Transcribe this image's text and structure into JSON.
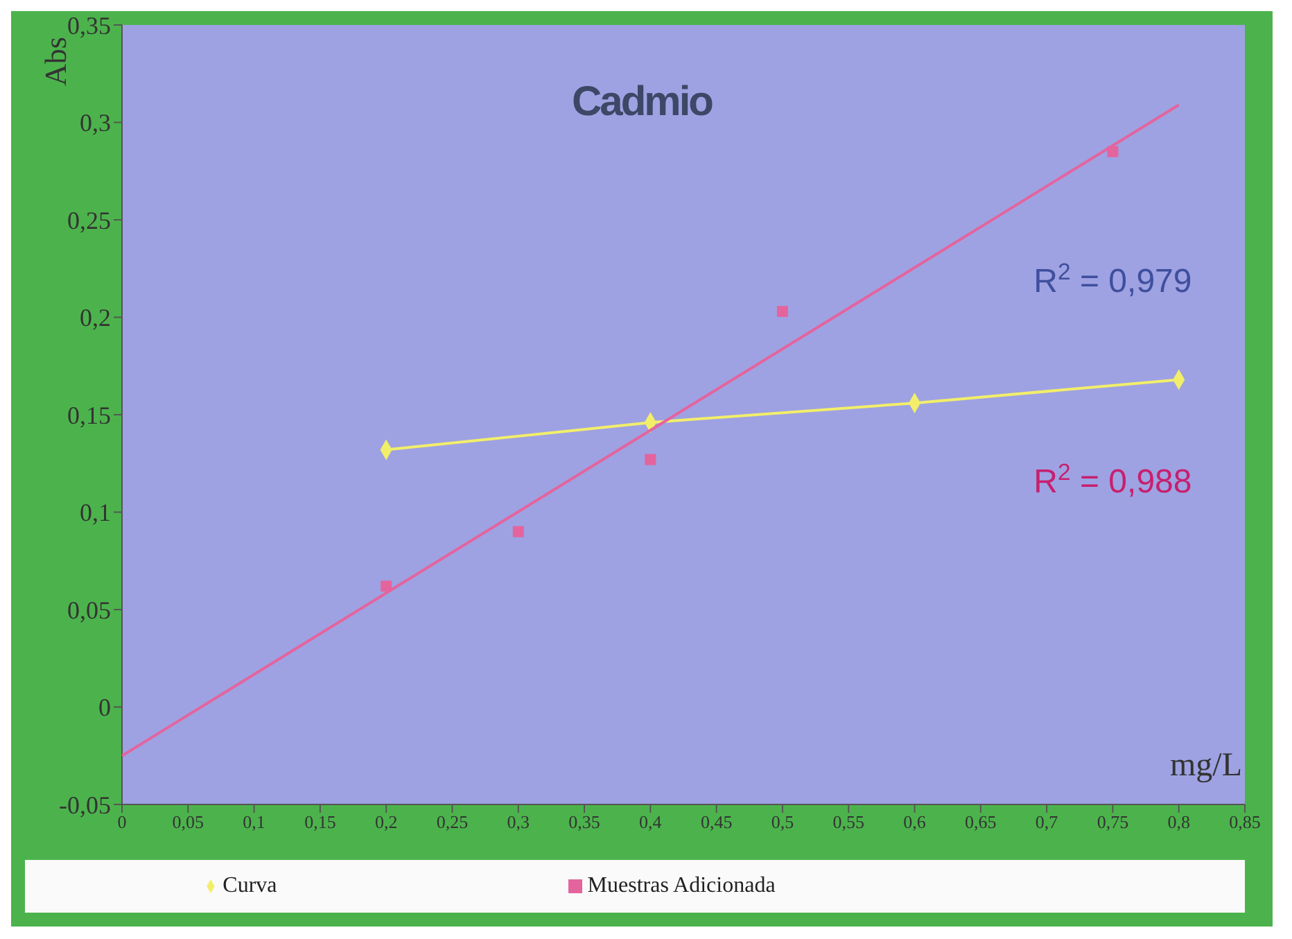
{
  "chart_data": {
    "type": "scatter",
    "title": "Cadmio",
    "xlabel": "mg/L",
    "ylabel": "Abs",
    "xlim": [
      0,
      0.85
    ],
    "xticks": [
      {
        "value": 0,
        "label": "0"
      },
      {
        "value": 0.05,
        "label": "0,05"
      },
      {
        "value": 0.1,
        "label": "0,1"
      },
      {
        "value": 0.15,
        "label": "0,15"
      },
      {
        "value": 0.2,
        "label": "0,2"
      },
      {
        "value": 0.25,
        "label": "0,25"
      },
      {
        "value": 0.3,
        "label": "0,3"
      },
      {
        "value": 0.35,
        "label": "0,35"
      },
      {
        "value": 0.4,
        "label": "0,4"
      },
      {
        "value": 0.45,
        "label": "0,45"
      },
      {
        "value": 0.5,
        "label": "0,5"
      },
      {
        "value": 0.55,
        "label": "0,55"
      },
      {
        "value": 0.6,
        "label": "0,6"
      },
      {
        "value": 0.65,
        "label": "0,65"
      },
      {
        "value": 0.7,
        "label": "0,7"
      },
      {
        "value": 0.75,
        "label": "0,75"
      },
      {
        "value": 0.8,
        "label": "0,8"
      },
      {
        "value": 0.85,
        "label": "0,85"
      }
    ],
    "ylim": [
      -0.05,
      0.35
    ],
    "yticks": [
      {
        "value": -0.05,
        "label": "-0,05"
      },
      {
        "value": 0,
        "label": "0"
      },
      {
        "value": 0.05,
        "label": "0,05"
      },
      {
        "value": 0.1,
        "label": "0,1"
      },
      {
        "value": 0.15,
        "label": "0,15"
      },
      {
        "value": 0.2,
        "label": "0,2"
      },
      {
        "value": 0.25,
        "label": "0,25"
      },
      {
        "value": 0.3,
        "label": "0,3"
      },
      {
        "value": 0.35,
        "label": "0,35"
      }
    ],
    "grid": false,
    "legend": "bottom",
    "series": [
      {
        "name": "Curva",
        "type": "line",
        "marker": "diamond",
        "color": "#f2ee6a",
        "x": [
          0.2,
          0.4,
          0.6,
          0.8
        ],
        "values": [
          0.132,
          0.146,
          0.156,
          0.168
        ]
      },
      {
        "name": "Muestras Adicionada",
        "marker": "square",
        "color": "#e4649e",
        "x": [
          0.2,
          0.3,
          0.4,
          0.5,
          0.75
        ],
        "values": [
          0.062,
          0.09,
          0.127,
          0.203,
          0.285
        ]
      },
      {
        "type": "line",
        "marker": "none",
        "color": "#e4649e",
        "x": [
          0,
          0.8
        ],
        "values": [
          -0.025,
          0.309
        ]
      }
    ],
    "annotations": [
      "R$^{2}$ = 0,979",
      "R$^{2}$ = 0,988"
    ]
  }
}
